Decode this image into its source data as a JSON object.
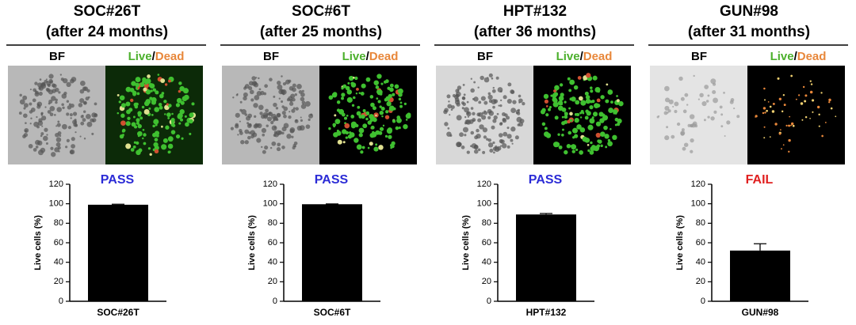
{
  "chart_data": [
    {
      "type": "bar",
      "title": "SOC#26T",
      "subtitle": "(after 24 months)",
      "image_labels": {
        "bf": "BF",
        "live": "Live",
        "slash": "/",
        "dead": "Dead"
      },
      "status": "PASS",
      "status_color": "#2b2bd6",
      "ylabel": "Live cells (%)",
      "categories": [
        "SOC#26T"
      ],
      "values": [
        99
      ],
      "errors": [
        0.5
      ],
      "color": "#000000",
      "ylim": [
        0,
        120
      ],
      "yticks": [
        0,
        20,
        40,
        60,
        80,
        100,
        120
      ]
    },
    {
      "type": "bar",
      "title": "SOC#6T",
      "subtitle": "(after 25 months)",
      "image_labels": {
        "bf": "BF",
        "live": "Live",
        "slash": "/",
        "dead": "Dead"
      },
      "status": "PASS",
      "status_color": "#2b2bd6",
      "ylabel": "Live cells (%)",
      "categories": [
        "SOC#6T"
      ],
      "values": [
        99.5
      ],
      "errors": [
        0.3
      ],
      "color": "#000000",
      "ylim": [
        0,
        120
      ],
      "yticks": [
        0,
        20,
        40,
        60,
        80,
        100,
        120
      ]
    },
    {
      "type": "bar",
      "title": "HPT#132",
      "subtitle": "(after 36 months)",
      "image_labels": {
        "bf": "BF",
        "live": "Live",
        "slash": "/",
        "dead": "Dead"
      },
      "status": "PASS",
      "status_color": "#2b2bd6",
      "ylabel": "Live cells (%)",
      "categories": [
        "HPT#132"
      ],
      "values": [
        89
      ],
      "errors": [
        1
      ],
      "color": "#000000",
      "ylim": [
        0,
        120
      ],
      "yticks": [
        0,
        20,
        40,
        60,
        80,
        100,
        120
      ]
    },
    {
      "type": "bar",
      "title": "GUN#98",
      "subtitle": "(after 31 months)",
      "image_labels": {
        "bf": "BF",
        "live": "Live",
        "slash": "/",
        "dead": "Dead"
      },
      "status": "FAIL",
      "status_color": "#e02020",
      "ylabel": "Live cells (%)",
      "categories": [
        "GUN#98"
      ],
      "values": [
        52
      ],
      "errors": [
        7
      ],
      "color": "#000000",
      "ylim": [
        0,
        120
      ],
      "yticks": [
        0,
        20,
        40,
        60,
        80,
        100,
        120
      ]
    }
  ]
}
